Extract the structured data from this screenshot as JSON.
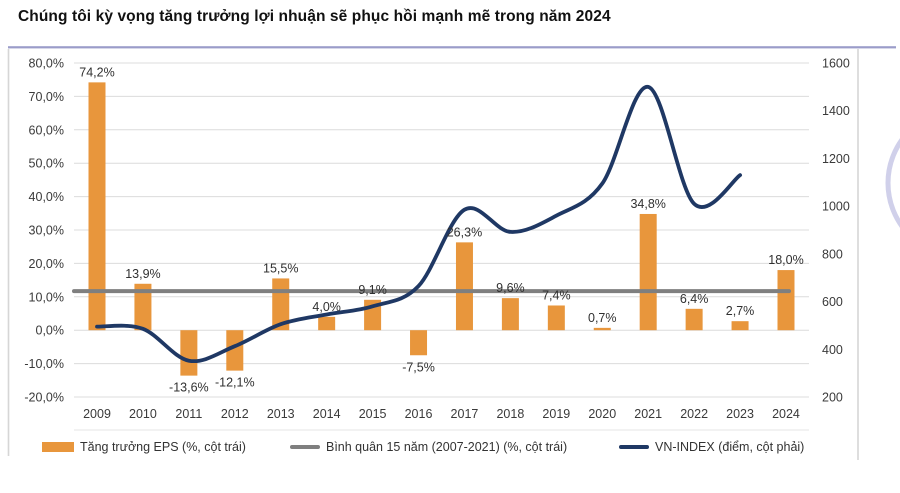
{
  "title": "Chúng tôi kỳ vọng tăng trưởng lợi nhuận sẽ phục hồi mạnh mẽ trong năm 2024",
  "chart_data": {
    "type": "combo",
    "categories": [
      "2009",
      "2010",
      "2011",
      "2012",
      "2013",
      "2014",
      "2015",
      "2016",
      "2017",
      "2018",
      "2019",
      "2020",
      "2021",
      "2022",
      "2023",
      "2024"
    ],
    "series": [
      {
        "name": "Tăng trưởng EPS (%, cột trái)",
        "chart_type": "bar",
        "axis": "left",
        "values": [
          74.2,
          13.9,
          -13.6,
          -12.1,
          15.5,
          4.0,
          9.1,
          -7.5,
          26.3,
          9.6,
          7.4,
          0.7,
          34.8,
          6.4,
          2.7,
          18.0
        ],
        "labels": [
          "74,2%",
          "13,9%",
          "-13,6%",
          "-12,1%",
          "15,5%",
          "4,0%",
          "9,1%",
          "-7,5%",
          "26,3%",
          "9,6%",
          "7,4%",
          "0,7%",
          "34,8%",
          "6,4%",
          "2,7%",
          "18,0%"
        ]
      },
      {
        "name": "Bình quân 15 năm (2007-2021) (%, cột trái)",
        "chart_type": "reference-line",
        "axis": "left",
        "value": 11.7
      },
      {
        "name": "VN-INDEX (điểm, cột phải)",
        "chart_type": "smooth-line",
        "axis": "right",
        "values": [
          495,
          486,
          352,
          413,
          505,
          546,
          580,
          665,
          985,
          892,
          960,
          1095,
          1500,
          1010,
          1130,
          null
        ]
      }
    ],
    "left_axis": {
      "min": -20,
      "max": 80,
      "tick_step": 10,
      "tick_labels": [
        "80,0%",
        "70,0%",
        "60,0%",
        "50,0%",
        "40,0%",
        "30,0%",
        "20,0%",
        "10,0%",
        "0,0%",
        "-10,0%",
        "-20,0%"
      ]
    },
    "right_axis": {
      "min": 200,
      "max": 1600,
      "tick_step": 200,
      "tick_labels": [
        "1600",
        "1400",
        "1200",
        "1000",
        "800",
        "600",
        "400",
        "200"
      ]
    },
    "grid": true,
    "legend_position": "bottom"
  },
  "legend": [
    {
      "label": "Tăng trưởng EPS (%, cột trái)"
    },
    {
      "label": "Bình quân 15 năm (2007-2021) (%, cột trái)"
    },
    {
      "label": "VN-INDEX (điểm, cột phải)"
    }
  ],
  "colors": {
    "bar": "#E8963C",
    "average_line": "#7F7F7F",
    "vnindex_line": "#1F3864",
    "gridline": "#DCDCDC",
    "axis_text": "#3A3A3A",
    "label_text": "#303030",
    "divider": "#9B9CC9",
    "side_line": "#D6D6D6",
    "decor_circle": "#A9AAD8"
  }
}
